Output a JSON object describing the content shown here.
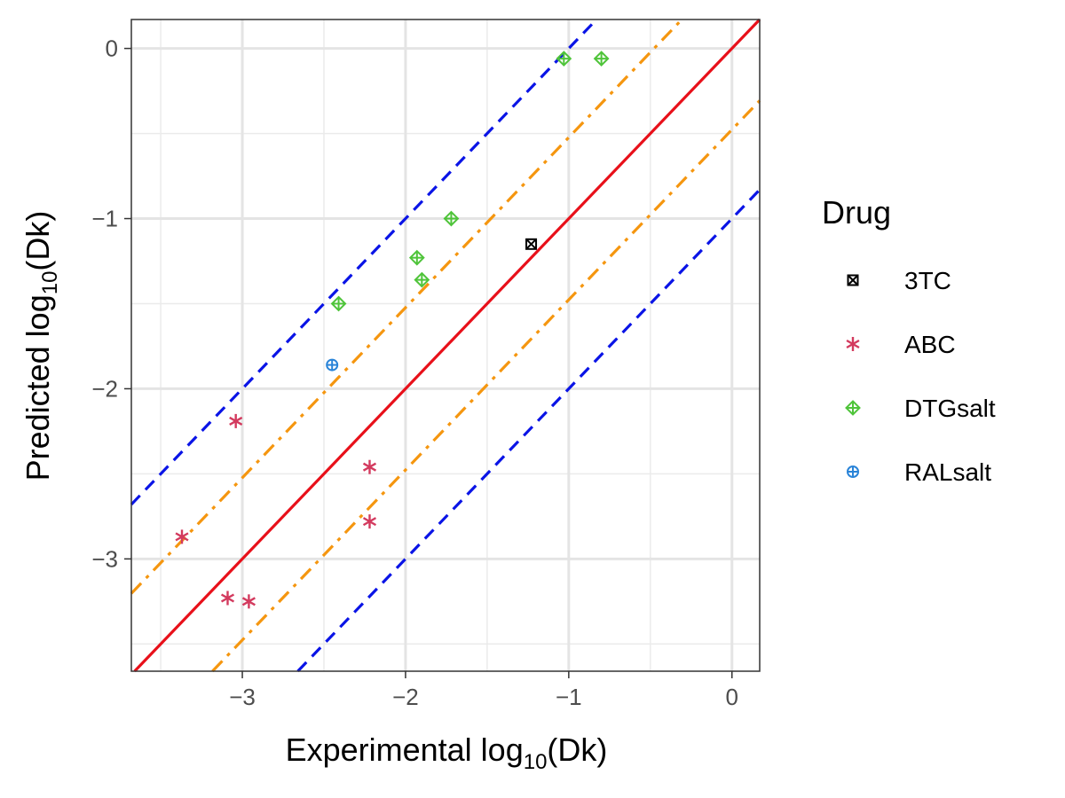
{
  "chart_data": {
    "type": "scatter",
    "xlabel": {
      "prefix": "Experimental log",
      "sub": "10",
      "suffix": "(Dk)"
    },
    "ylabel": {
      "prefix": "Predicted log",
      "sub": "10",
      "suffix": "(Dk)"
    },
    "xlim": [
      -3.68,
      0.17
    ],
    "ylim": [
      -3.66,
      0.17
    ],
    "x_ticks": [
      -3,
      -2,
      -1,
      0
    ],
    "x_tick_labels": [
      "−3",
      "−2",
      "−1",
      "0"
    ],
    "y_ticks": [
      -3,
      -2,
      -1,
      0
    ],
    "y_tick_labels": [
      "−3",
      "−2",
      "−1",
      "0"
    ],
    "grid": true,
    "legend": {
      "title": "Drug",
      "position": "right"
    },
    "reference_lines": [
      {
        "kind": "identity",
        "offset": 0,
        "color": "#e8101a",
        "style": "solid"
      },
      {
        "kind": "fold",
        "offset": 0.477,
        "color": "#f5960f",
        "style": "dashdot"
      },
      {
        "kind": "fold",
        "offset": -0.477,
        "color": "#f5960f",
        "style": "dashdot"
      },
      {
        "kind": "fold",
        "offset": 1.0,
        "color": "#0a14e6",
        "style": "dashed"
      },
      {
        "kind": "fold",
        "offset": -1.0,
        "color": "#0a14e6",
        "style": "dashed"
      }
    ],
    "series": [
      {
        "name": "3TC",
        "color": "#000000",
        "marker": "square-x",
        "points": [
          [
            -1.23,
            -1.15
          ]
        ]
      },
      {
        "name": "ABC",
        "color": "#d33a5e",
        "marker": "asterisk",
        "points": [
          [
            -3.37,
            -2.87
          ],
          [
            -3.04,
            -2.19
          ],
          [
            -3.09,
            -3.23
          ],
          [
            -2.96,
            -3.25
          ],
          [
            -2.22,
            -2.46
          ],
          [
            -2.22,
            -2.78
          ]
        ]
      },
      {
        "name": "DTGsalt",
        "color": "#4fc43a",
        "marker": "diamond-plus",
        "points": [
          [
            -2.41,
            -1.5
          ],
          [
            -1.93,
            -1.23
          ],
          [
            -1.9,
            -1.36
          ],
          [
            -1.72,
            -1.0
          ],
          [
            -1.03,
            -0.06
          ],
          [
            -0.8,
            -0.06
          ]
        ]
      },
      {
        "name": "RALsalt",
        "color": "#2a84d8",
        "marker": "circle-plus",
        "points": [
          [
            -2.45,
            -1.86
          ]
        ]
      }
    ]
  }
}
